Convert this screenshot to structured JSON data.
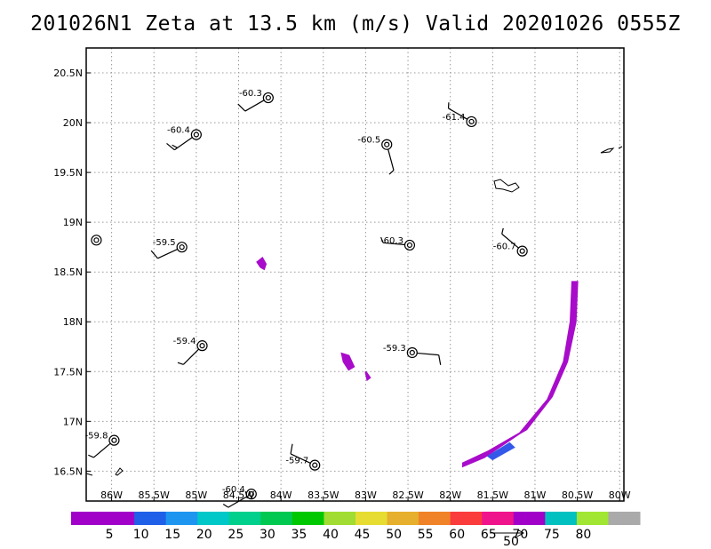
{
  "title": "201026N1  Zeta at 13.5 km (m/s) Valid 20201026 0555Z",
  "chart_data": {
    "type": "scatter",
    "title": "201026N1  Zeta at 13.5 km (m/s) Valid 20201026 0555Z",
    "xlim": [
      -86.3,
      -79.95
    ],
    "ylim": [
      16.2,
      20.75
    ],
    "grid": true,
    "x_ticks": [
      {
        "value": -86,
        "label": "86W"
      },
      {
        "value": -85.5,
        "label": "85.5W"
      },
      {
        "value": -85,
        "label": "85W"
      },
      {
        "value": -84.5,
        "label": "84.5W"
      },
      {
        "value": -84,
        "label": "84W"
      },
      {
        "value": -83.5,
        "label": "83.5W"
      },
      {
        "value": -83,
        "label": "83W"
      },
      {
        "value": -82.5,
        "label": "82.5W"
      },
      {
        "value": -82,
        "label": "82W"
      },
      {
        "value": -81.5,
        "label": "81.5W"
      },
      {
        "value": -81,
        "label": "81W"
      },
      {
        "value": -80.5,
        "label": "80.5W"
      },
      {
        "value": -80,
        "label": "80W"
      }
    ],
    "y_ticks": [
      {
        "value": 16.5,
        "label": "16.5N"
      },
      {
        "value": 17,
        "label": "17N"
      },
      {
        "value": 17.5,
        "label": "17.5N"
      },
      {
        "value": 18,
        "label": "18N"
      },
      {
        "value": 18.5,
        "label": "18.5N"
      },
      {
        "value": 19,
        "label": "19N"
      },
      {
        "value": 19.5,
        "label": "19.5N"
      },
      {
        "value": 20,
        "label": "20N"
      },
      {
        "value": 20.5,
        "label": "20.5N"
      }
    ],
    "stations": [
      {
        "lon": -84.15,
        "lat": 20.25,
        "label": "-60.3",
        "wdir": 240,
        "wspd": 10
      },
      {
        "lon": -85.0,
        "lat": 19.88,
        "label": "-60.4",
        "wdir": 235,
        "wspd": 15
      },
      {
        "lon": -82.75,
        "lat": 19.78,
        "label": "-60.5",
        "wdir": 165,
        "wspd": 5
      },
      {
        "lon": -81.75,
        "lat": 20.01,
        "label": "-61.4",
        "wdir": 300,
        "wspd": 5
      },
      {
        "lon": -86.18,
        "lat": 18.82,
        "label": "",
        "wdir": null,
        "wspd": 0
      },
      {
        "lon": -85.17,
        "lat": 18.75,
        "label": "-59.5",
        "wdir": 245,
        "wspd": 10
      },
      {
        "lon": -82.48,
        "lat": 18.77,
        "label": "-60.3",
        "wdir": 275,
        "wspd": 5
      },
      {
        "lon": -81.15,
        "lat": 18.71,
        "label": "-60.7",
        "wdir": 310,
        "wspd": 5
      },
      {
        "lon": -84.93,
        "lat": 17.76,
        "label": "-59.4",
        "wdir": 225,
        "wspd": 5
      },
      {
        "lon": -82.45,
        "lat": 17.69,
        "label": "-59.3",
        "wdir": 95,
        "wspd": 10
      },
      {
        "lon": -85.97,
        "lat": 16.81,
        "label": "-59.8",
        "wdir": 230,
        "wspd": 5
      },
      {
        "lon": -83.6,
        "lat": 16.56,
        "label": "-59.7",
        "wdir": 295,
        "wspd": 10
      },
      {
        "lon": -84.35,
        "lat": 16.27,
        "label": "-60.4",
        "wdir": 240,
        "wspd": 5
      }
    ],
    "zeta_blobs": [
      {
        "points": [
          [
            -84.28,
            18.6
          ],
          [
            -84.22,
            18.64
          ],
          [
            -84.18,
            18.58
          ],
          [
            -84.2,
            18.53
          ],
          [
            -84.24,
            18.55
          ]
        ],
        "color": "#a400c8"
      },
      {
        "points": [
          [
            -83.28,
            17.68
          ],
          [
            -83.2,
            17.66
          ],
          [
            -83.14,
            17.55
          ],
          [
            -83.2,
            17.52
          ],
          [
            -83.26,
            17.6
          ]
        ],
        "color": "#a400c8"
      },
      {
        "points": [
          [
            -83.0,
            17.5
          ],
          [
            -82.95,
            17.44
          ],
          [
            -82.98,
            17.42
          ]
        ],
        "color": "#a400c8"
      },
      {
        "points": [
          [
            -81.85,
            16.58
          ],
          [
            -81.55,
            16.7
          ],
          [
            -81.1,
            16.92
          ],
          [
            -80.8,
            17.25
          ],
          [
            -80.62,
            17.6
          ],
          [
            -80.52,
            18.0
          ],
          [
            -80.5,
            18.4
          ],
          [
            -80.56,
            18.4
          ],
          [
            -80.58,
            18.0
          ],
          [
            -80.66,
            17.6
          ],
          [
            -80.85,
            17.22
          ],
          [
            -81.18,
            16.88
          ],
          [
            -81.6,
            16.64
          ],
          [
            -81.85,
            16.55
          ]
        ],
        "color": "#a400c8"
      },
      {
        "points": [
          [
            -81.55,
            16.65
          ],
          [
            -81.3,
            16.78
          ],
          [
            -81.25,
            16.74
          ],
          [
            -81.5,
            16.62
          ]
        ],
        "color": "#2a50e8"
      }
    ],
    "colorbar": {
      "ticks": [
        "5",
        "10",
        "15",
        "20",
        "25",
        "30",
        "35",
        "40",
        "45",
        "50",
        "55",
        "60",
        "65",
        "70",
        "75",
        "80"
      ],
      "colors": [
        "#a000c8",
        "#a000c8",
        "#2060e8",
        "#1e96f0",
        "#00c8c8",
        "#00d08c",
        "#00c850",
        "#00c800",
        "#a0dc32",
        "#e6dc32",
        "#e6af2d",
        "#f08228",
        "#fa3c3c",
        "#f0148c",
        "#a000c8",
        "#00c0c0",
        "#a0e632",
        "#aaaaaa"
      ]
    },
    "reference_vector": {
      "label": "50"
    }
  }
}
